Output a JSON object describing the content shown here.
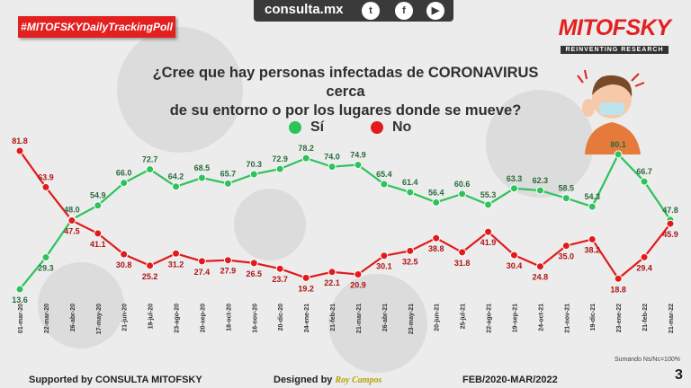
{
  "header": {
    "site": "consulta.mx",
    "social_icons": [
      "twitter-icon",
      "facebook-icon",
      "youtube-icon"
    ],
    "social_glyphs": [
      "t",
      "f",
      "▶"
    ],
    "tag": "#MITOFSKYDailyTrackingPoll",
    "brand": "MITOFSKY",
    "brand_sub": "REINVENTING RESEARCH"
  },
  "question": {
    "line1": "¿Cree que hay personas infectadas de CORONAVIRUS cerca",
    "line2": "de su entorno o por los lugares donde se mueve?"
  },
  "colors": {
    "si": "#2ec25b",
    "no": "#e11b1b",
    "brand": "#e41f1f"
  },
  "chart_data": {
    "type": "line",
    "title": "¿Cree que hay personas infectadas de CORONAVIRUS cerca de su entorno o por los lugares donde se mueve?",
    "categories": [
      "01-mar-20",
      "22-mar-20",
      "26-abr-20",
      "17-may-20",
      "21-jun-20",
      "19-jul-20",
      "23-ago-20",
      "20-sep-20",
      "18-oct-20",
      "16-nov-20",
      "20-dic-20",
      "24-ene-21",
      "21-feb-21",
      "21-mar-21",
      "26-abr-21",
      "23-may-21",
      "20-jun-21",
      "25-jul-21",
      "22-ago-21",
      "19-sep-21",
      "24-oct-21",
      "21-nov-21",
      "19-dic-21",
      "23-ene-22",
      "21-feb-22",
      "21-mar-22"
    ],
    "series": [
      {
        "name": "Sí",
        "values": [
          13.6,
          29.3,
          48.0,
          54.9,
          66.0,
          72.7,
          64.2,
          68.5,
          65.7,
          70.3,
          72.9,
          78.2,
          74.0,
          74.9,
          65.4,
          61.4,
          56.4,
          60.6,
          55.3,
          63.3,
          62.3,
          58.5,
          54.3,
          80.1,
          66.7,
          47.8
        ]
      },
      {
        "name": "No",
        "values": [
          81.8,
          63.9,
          47.5,
          41.1,
          30.8,
          25.2,
          31.2,
          27.4,
          27.9,
          26.5,
          23.7,
          19.2,
          22.1,
          20.9,
          30.1,
          32.5,
          38.8,
          31.8,
          41.9,
          30.4,
          24.8,
          35.0,
          38.2,
          18.8,
          29.4,
          45.9
        ]
      }
    ],
    "legend": [
      "Sí",
      "No"
    ],
    "legend_position": "top-center",
    "ylim": [
      0,
      100
    ],
    "grid": false,
    "annotations": [
      "Sumando Ns/Nc=100%"
    ]
  },
  "footer": {
    "supported": "Supported by  CONSULTA  MITOFSKY",
    "designed": "Designed by",
    "designer": "Roy Campos",
    "period": "FEB/2020-MAR/2022",
    "page": "3"
  }
}
